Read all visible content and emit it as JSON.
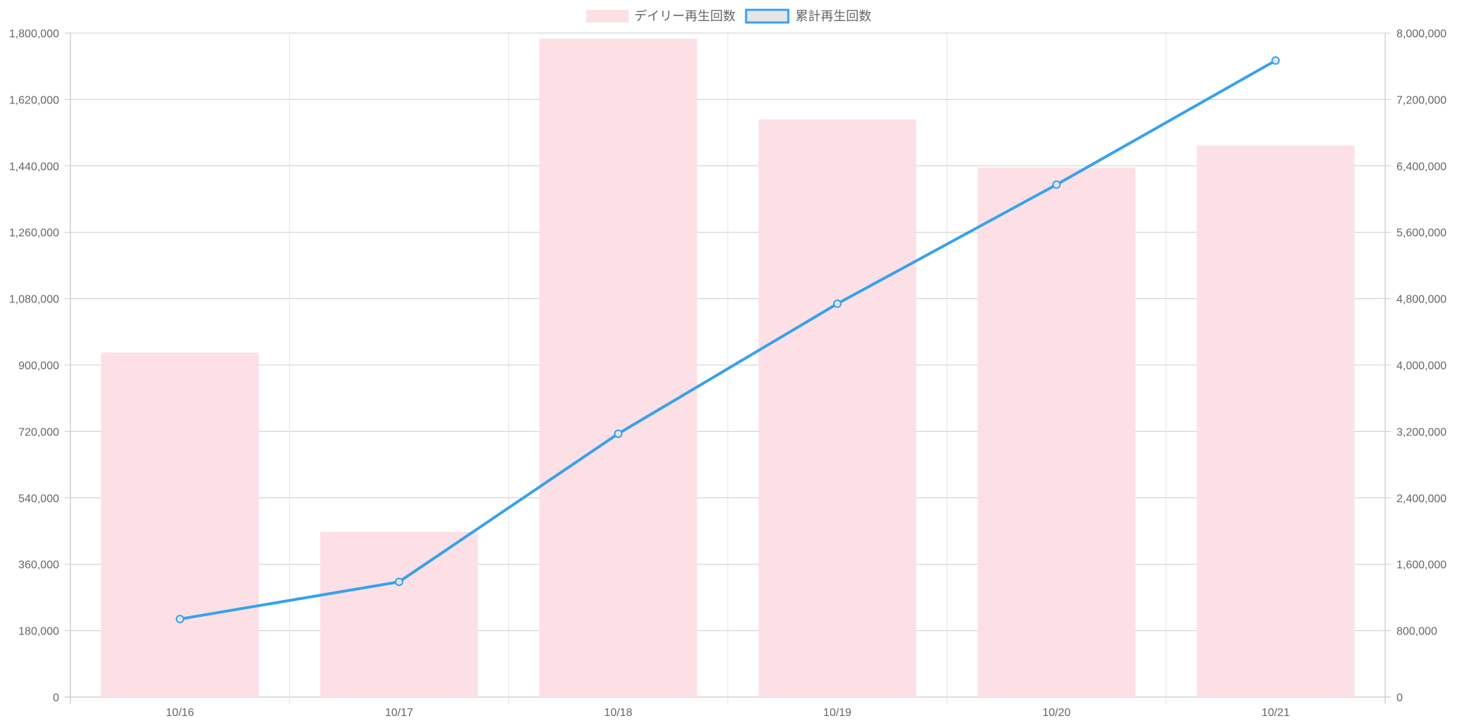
{
  "chart_data": {
    "type": "bar+line",
    "title": "",
    "categories": [
      "10/16",
      "10/17",
      "10/18",
      "10/19",
      "10/20",
      "10/21"
    ],
    "series": [
      {
        "name": "デイリー再生回数",
        "type": "bar",
        "axis": "left",
        "color": "#fde0e6",
        "values": [
          934000,
          448000,
          1785000,
          1566000,
          1435000,
          1495000
        ]
      },
      {
        "name": "累計再生回数",
        "type": "line",
        "axis": "right",
        "color": "#36a2eb",
        "fill": "#e5e5e5",
        "values": [
          940000,
          1388000,
          3173000,
          4739000,
          6174000,
          7669000
        ]
      }
    ],
    "y_left": {
      "range": [
        0,
        1800000
      ],
      "ticks": [
        "0",
        "180,000",
        "360,000",
        "540,000",
        "720,000",
        "900,000",
        "1,080,000",
        "1,260,000",
        "1,440,000",
        "1,620,000",
        "1,800,000"
      ]
    },
    "y_right": {
      "range": [
        0,
        8000000
      ],
      "ticks": [
        "0",
        "800,000",
        "1,600,000",
        "2,400,000",
        "3,200,000",
        "4,000,000",
        "4,800,000",
        "5,600,000",
        "6,400,000",
        "7,200,000",
        "8,000,000"
      ]
    },
    "grid": true,
    "legend": "top-center"
  }
}
